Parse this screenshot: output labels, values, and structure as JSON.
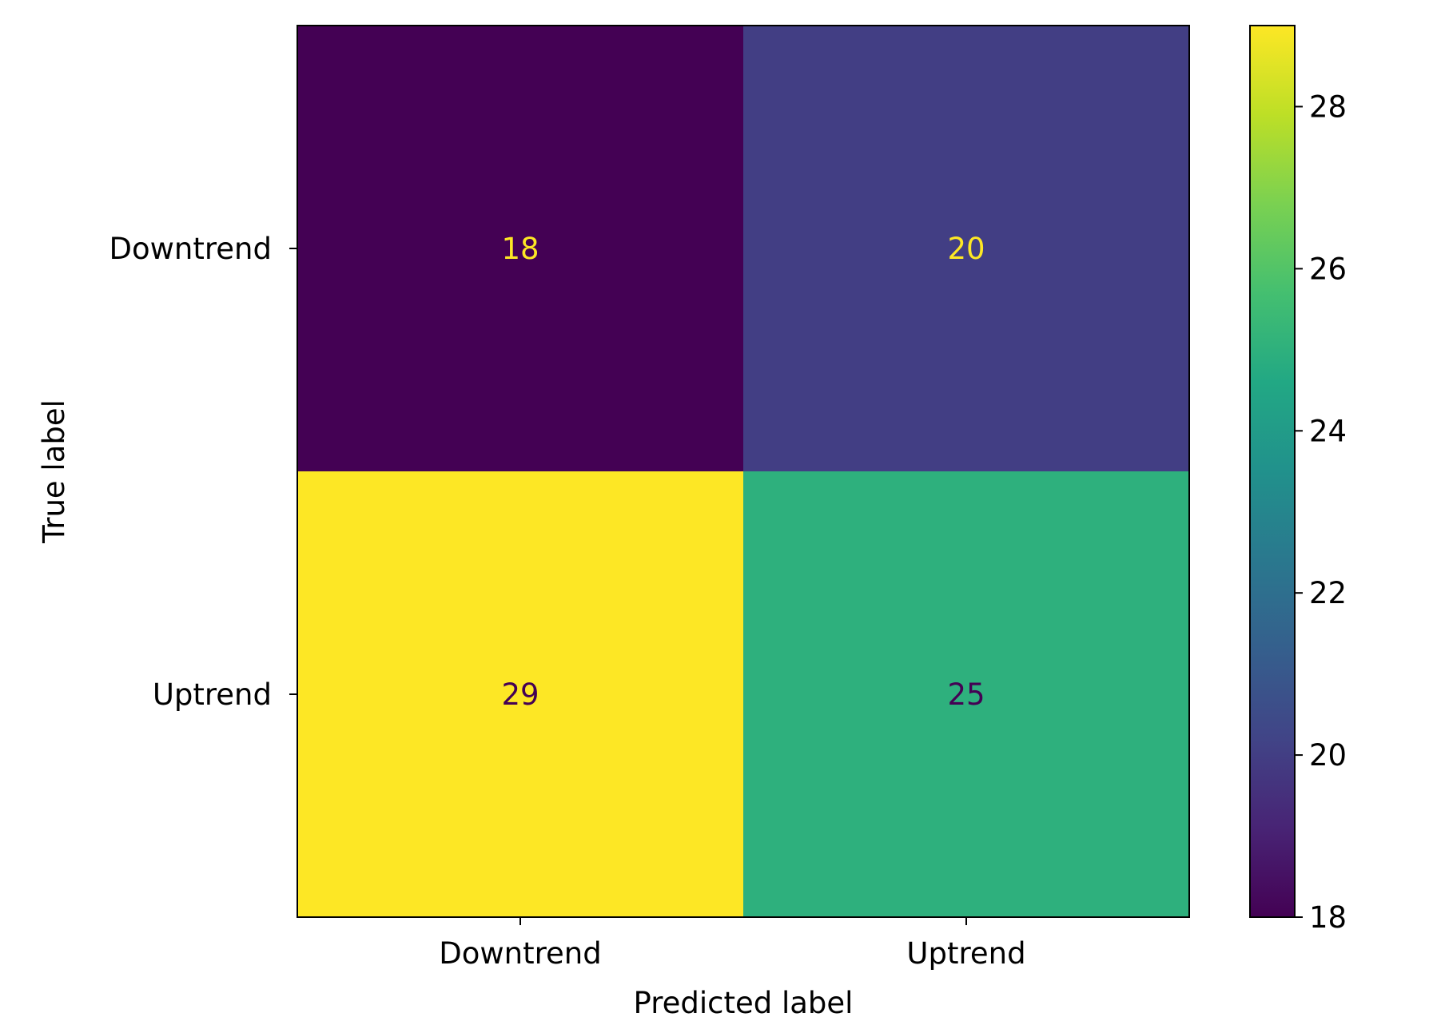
{
  "chart_data": {
    "type": "heatmap",
    "title": "",
    "xlabel": "Predicted label",
    "ylabel": "True label",
    "x_categories": [
      "Downtrend",
      "Uptrend"
    ],
    "y_categories": [
      "Downtrend",
      "Uptrend"
    ],
    "values": [
      [
        18,
        20
      ],
      [
        29,
        25
      ]
    ],
    "colormap": "viridis",
    "colorbar": {
      "min": 18,
      "max": 29,
      "ticks": [
        18,
        20,
        22,
        24,
        26,
        28
      ],
      "tick_labels": [
        "18",
        "20",
        "22",
        "24",
        "26",
        "28"
      ]
    },
    "text_colors": {
      "light": "#fde725",
      "dark": "#440154"
    }
  }
}
